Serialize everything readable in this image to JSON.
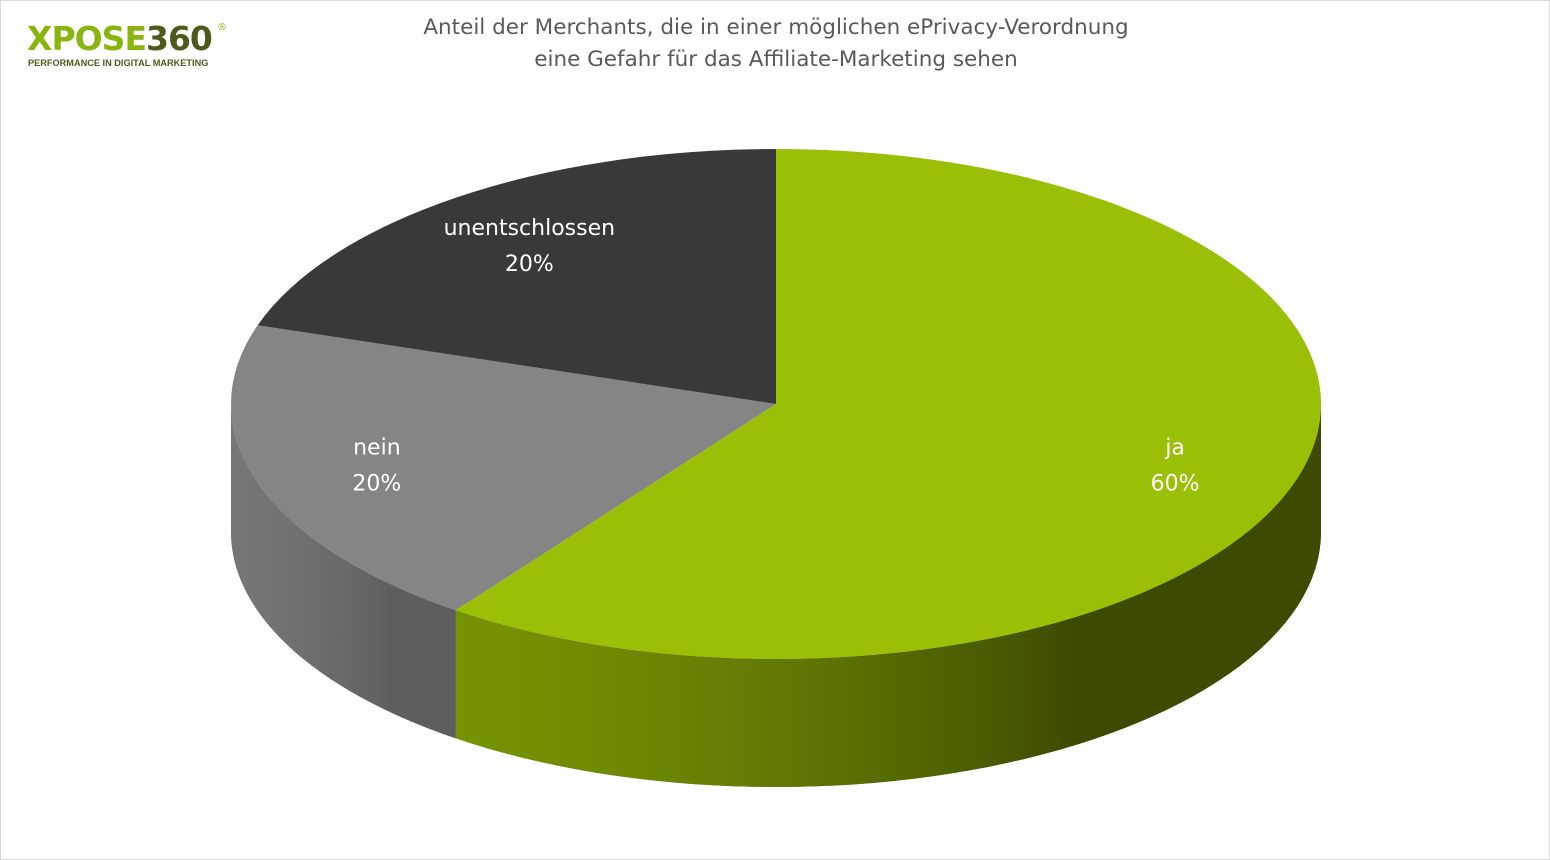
{
  "logo": {
    "wordmark_a": "XPOSE",
    "wordmark_b": "360",
    "registered": "®",
    "tagline": "PERFORMANCE IN DIGITAL MARKETING"
  },
  "chart_data": {
    "type": "pie",
    "style": "3d",
    "title_lines": [
      "Anteil der Merchants, die in einer möglichen ePrivacy-Verordnung",
      "eine Gefahr für das Affiliate-Marketing sehen"
    ],
    "slices": [
      {
        "label": "ja",
        "value": 60,
        "value_label": "60%",
        "color": "#99bf06",
        "side_color": "#3d4b02"
      },
      {
        "label": "nein",
        "value": 20,
        "value_label": "20%",
        "color": "#858585",
        "side_color": "#5e5e5e"
      },
      {
        "label": "unentschlossen",
        "value": 20,
        "value_label": "20%",
        "color": "#393939",
        "side_color": "#262626"
      }
    ],
    "legend": "none"
  },
  "colors": {
    "logo_green": "#8ab40e",
    "logo_dark": "#4d5a1c",
    "title_text": "#595959",
    "label_text": "#ffffff"
  }
}
